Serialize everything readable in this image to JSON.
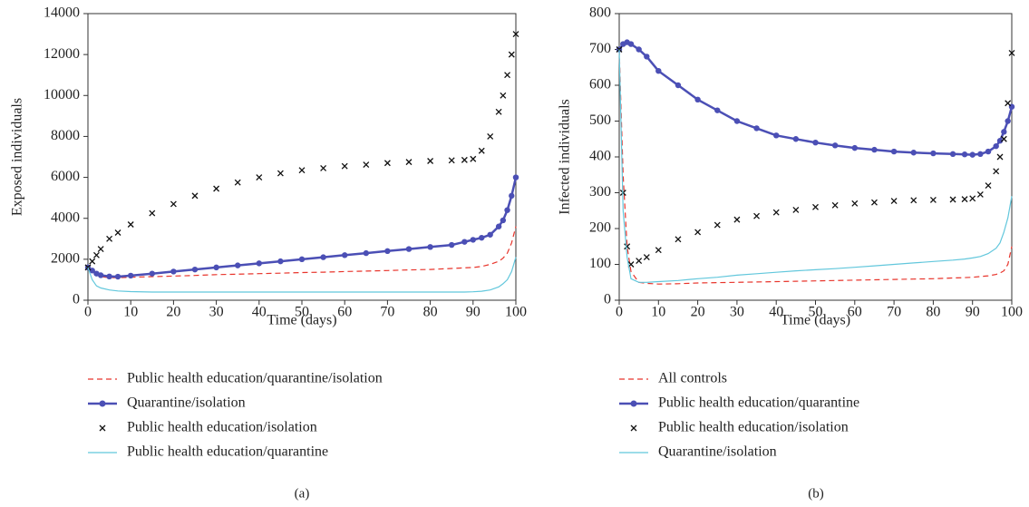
{
  "chart_data": [
    {
      "type": "line",
      "caption": "(a)",
      "xlabel": "Time (days)",
      "ylabel": "Exposed individuals",
      "xlim": [
        0,
        100
      ],
      "xticks": [
        0,
        10,
        20,
        30,
        40,
        50,
        60,
        70,
        80,
        90,
        100
      ],
      "ylim": [
        0,
        14000
      ],
      "yticks": [
        0,
        2000,
        4000,
        6000,
        8000,
        10000,
        12000,
        14000
      ],
      "x": [
        0,
        1,
        2,
        3,
        5,
        7,
        10,
        15,
        20,
        25,
        30,
        35,
        40,
        45,
        50,
        55,
        60,
        65,
        70,
        75,
        80,
        85,
        88,
        90,
        92,
        94,
        96,
        97,
        98,
        99,
        100
      ],
      "series": [
        {
          "name": "Public health education/quarantine/isolation",
          "color": "#e8352c",
          "style": "dashed",
          "marker": "none",
          "values": [
            1600,
            1400,
            1250,
            1150,
            1100,
            1100,
            1120,
            1150,
            1180,
            1210,
            1250,
            1270,
            1300,
            1320,
            1350,
            1370,
            1400,
            1420,
            1450,
            1480,
            1500,
            1550,
            1580,
            1600,
            1650,
            1750,
            1900,
            2050,
            2300,
            2800,
            3600
          ]
        },
        {
          "name": "Quarantine/isolation",
          "color": "#4b4fb5",
          "style": "solid",
          "marker": "circle",
          "values": [
            1600,
            1450,
            1300,
            1220,
            1160,
            1150,
            1200,
            1300,
            1400,
            1500,
            1600,
            1700,
            1800,
            1900,
            2000,
            2100,
            2200,
            2300,
            2400,
            2500,
            2600,
            2700,
            2850,
            2950,
            3050,
            3200,
            3600,
            3900,
            4400,
            5100,
            6000
          ]
        },
        {
          "name": "Public health education/isolation",
          "color": "#111111",
          "style": "none",
          "marker": "x",
          "values": [
            1600,
            1900,
            2200,
            2500,
            3000,
            3300,
            3700,
            4250,
            4700,
            5100,
            5450,
            5750,
            6000,
            6200,
            6350,
            6450,
            6550,
            6620,
            6700,
            6750,
            6800,
            6830,
            6850,
            6900,
            7300,
            8000,
            9200,
            10000,
            11000,
            12000,
            13000
          ]
        },
        {
          "name": "Public health education/quarantine",
          "color": "#62c7dc",
          "style": "solid",
          "marker": "none",
          "values": [
            1600,
            1000,
            700,
            600,
            500,
            450,
            420,
            400,
            400,
            400,
            400,
            400,
            400,
            400,
            400,
            400,
            400,
            400,
            400,
            400,
            400,
            400,
            400,
            410,
            440,
            500,
            650,
            800,
            1000,
            1400,
            2100
          ]
        }
      ]
    },
    {
      "type": "line",
      "caption": "(b)",
      "xlabel": "Time (days)",
      "ylabel": "Infected individuals",
      "xlim": [
        0,
        100
      ],
      "xticks": [
        0,
        10,
        20,
        30,
        40,
        50,
        60,
        70,
        80,
        90,
        100
      ],
      "ylim": [
        0,
        800
      ],
      "yticks": [
        0,
        100,
        200,
        300,
        400,
        500,
        600,
        700,
        800
      ],
      "x": [
        0,
        1,
        2,
        3,
        5,
        7,
        10,
        15,
        20,
        25,
        30,
        35,
        40,
        45,
        50,
        55,
        60,
        65,
        70,
        75,
        80,
        85,
        88,
        90,
        92,
        94,
        96,
        97,
        98,
        99,
        100
      ],
      "series": [
        {
          "name": "All controls",
          "color": "#e8352c",
          "style": "dashed",
          "marker": "none",
          "values": [
            700,
            350,
            150,
            80,
            50,
            47,
            45,
            46,
            48,
            49,
            50,
            51,
            52,
            53,
            54,
            55,
            56,
            57,
            58,
            59,
            60,
            62,
            63,
            64,
            66,
            68,
            72,
            76,
            82,
            100,
            150
          ]
        },
        {
          "name": "Public health education/quarantine",
          "color": "#4b4fb5",
          "style": "solid",
          "marker": "circle",
          "values": [
            700,
            715,
            720,
            715,
            700,
            680,
            640,
            600,
            560,
            530,
            500,
            480,
            460,
            450,
            440,
            432,
            425,
            420,
            415,
            412,
            410,
            408,
            407,
            406,
            408,
            415,
            430,
            445,
            470,
            500,
            540
          ]
        },
        {
          "name": "Public health education/isolation",
          "color": "#111111",
          "style": "none",
          "marker": "x",
          "values": [
            700,
            300,
            150,
            100,
            110,
            120,
            140,
            170,
            190,
            210,
            225,
            235,
            245,
            252,
            260,
            265,
            270,
            273,
            277,
            279,
            280,
            281,
            282,
            284,
            295,
            320,
            360,
            400,
            450,
            550,
            690
          ]
        },
        {
          "name": "Quarantine/isolation",
          "color": "#62c7dc",
          "style": "solid",
          "marker": "none",
          "values": [
            700,
            250,
            120,
            60,
            50,
            50,
            52,
            55,
            60,
            64,
            70,
            74,
            78,
            82,
            85,
            88,
            92,
            96,
            100,
            104,
            108,
            112,
            115,
            118,
            122,
            130,
            145,
            160,
            190,
            230,
            290
          ]
        }
      ]
    }
  ]
}
